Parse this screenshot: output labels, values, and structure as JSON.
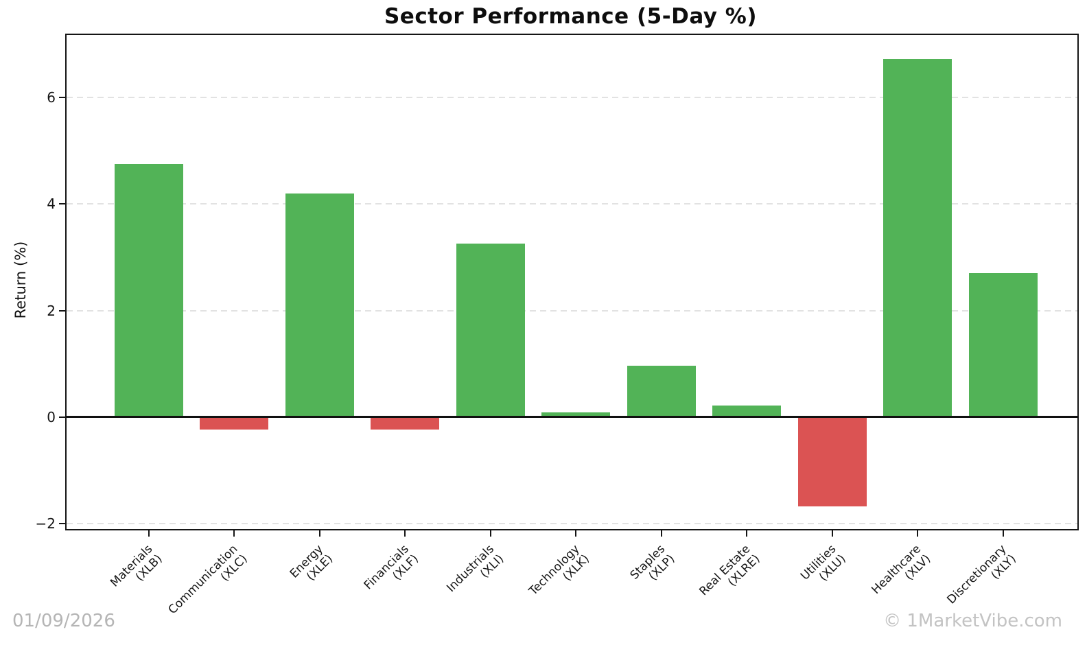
{
  "chart_data": {
    "type": "bar",
    "title": "Sector Performance (5-Day %)",
    "xlabel": "",
    "ylabel": "Return (%)",
    "categories": [
      {
        "sector": "Materials",
        "ticker": "(XLB)"
      },
      {
        "sector": "Communication",
        "ticker": "(XLC)"
      },
      {
        "sector": "Energy",
        "ticker": "(XLE)"
      },
      {
        "sector": "Financials",
        "ticker": "(XLF)"
      },
      {
        "sector": "Industrials",
        "ticker": "(XLI)"
      },
      {
        "sector": "Technology",
        "ticker": "(XLK)"
      },
      {
        "sector": "Staples",
        "ticker": "(XLP)"
      },
      {
        "sector": "Real Estate",
        "ticker": "(XLRE)"
      },
      {
        "sector": "Utilities",
        "ticker": "(XLU)"
      },
      {
        "sector": "Healthcare",
        "ticker": "(XLV)"
      },
      {
        "sector": "Discretionary",
        "ticker": "(XLY)"
      }
    ],
    "values": [
      4.75,
      -0.22,
      4.2,
      -0.22,
      3.25,
      0.09,
      0.97,
      0.22,
      -1.65,
      6.72,
      2.7
    ],
    "yticks": [
      6,
      4,
      2,
      0,
      -2
    ],
    "ylim": [
      -2.1,
      7.17
    ],
    "grid": {
      "axis": "y",
      "style": "dashed",
      "color": "#e2e2e2"
    },
    "legend": "none",
    "colors": {
      "positive": "#52b357",
      "negative": "#db5353"
    }
  },
  "footer": {
    "date": "01/09/2026",
    "watermark": "© 1MarketVibe.com"
  }
}
